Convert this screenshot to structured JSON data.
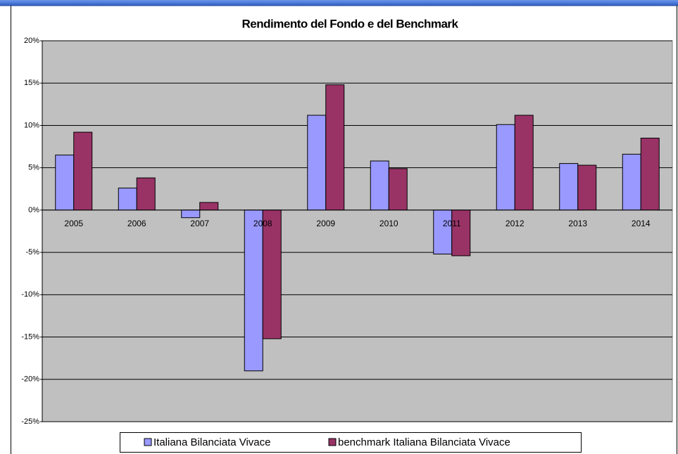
{
  "chart_data": {
    "type": "bar",
    "title": "Rendimento del Fondo e del Benchmark",
    "categories": [
      "2005",
      "2006",
      "2007",
      "2008",
      "2009",
      "2010",
      "2011",
      "2012",
      "2013",
      "2014"
    ],
    "series": [
      {
        "name": "Italiana Bilanciata Vivace",
        "color": "#9999ff",
        "values": [
          6.5,
          2.6,
          -0.9,
          -19.0,
          11.2,
          5.8,
          -5.2,
          10.1,
          5.5,
          6.6
        ]
      },
      {
        "name": "benchmark Italiana Bilanciata Vivace",
        "color": "#993366",
        "values": [
          9.2,
          3.8,
          0.9,
          -15.2,
          14.8,
          4.9,
          -5.4,
          11.2,
          5.3,
          8.5
        ]
      }
    ],
    "ylim": [
      -25,
      20
    ],
    "yticks": [
      {
        "value": -25,
        "label": "-25%"
      },
      {
        "value": -20,
        "label": "-20%"
      },
      {
        "value": -15,
        "label": "-15%"
      },
      {
        "value": -10,
        "label": "-10%"
      },
      {
        "value": -5,
        "label": "-5%"
      },
      {
        "value": 0,
        "label": "0%"
      },
      {
        "value": 5,
        "label": "5%"
      },
      {
        "value": 10,
        "label": "10%"
      },
      {
        "value": 15,
        "label": "15%"
      },
      {
        "value": 20,
        "label": "20%"
      }
    ],
    "grid": true,
    "legend": "bottom"
  }
}
